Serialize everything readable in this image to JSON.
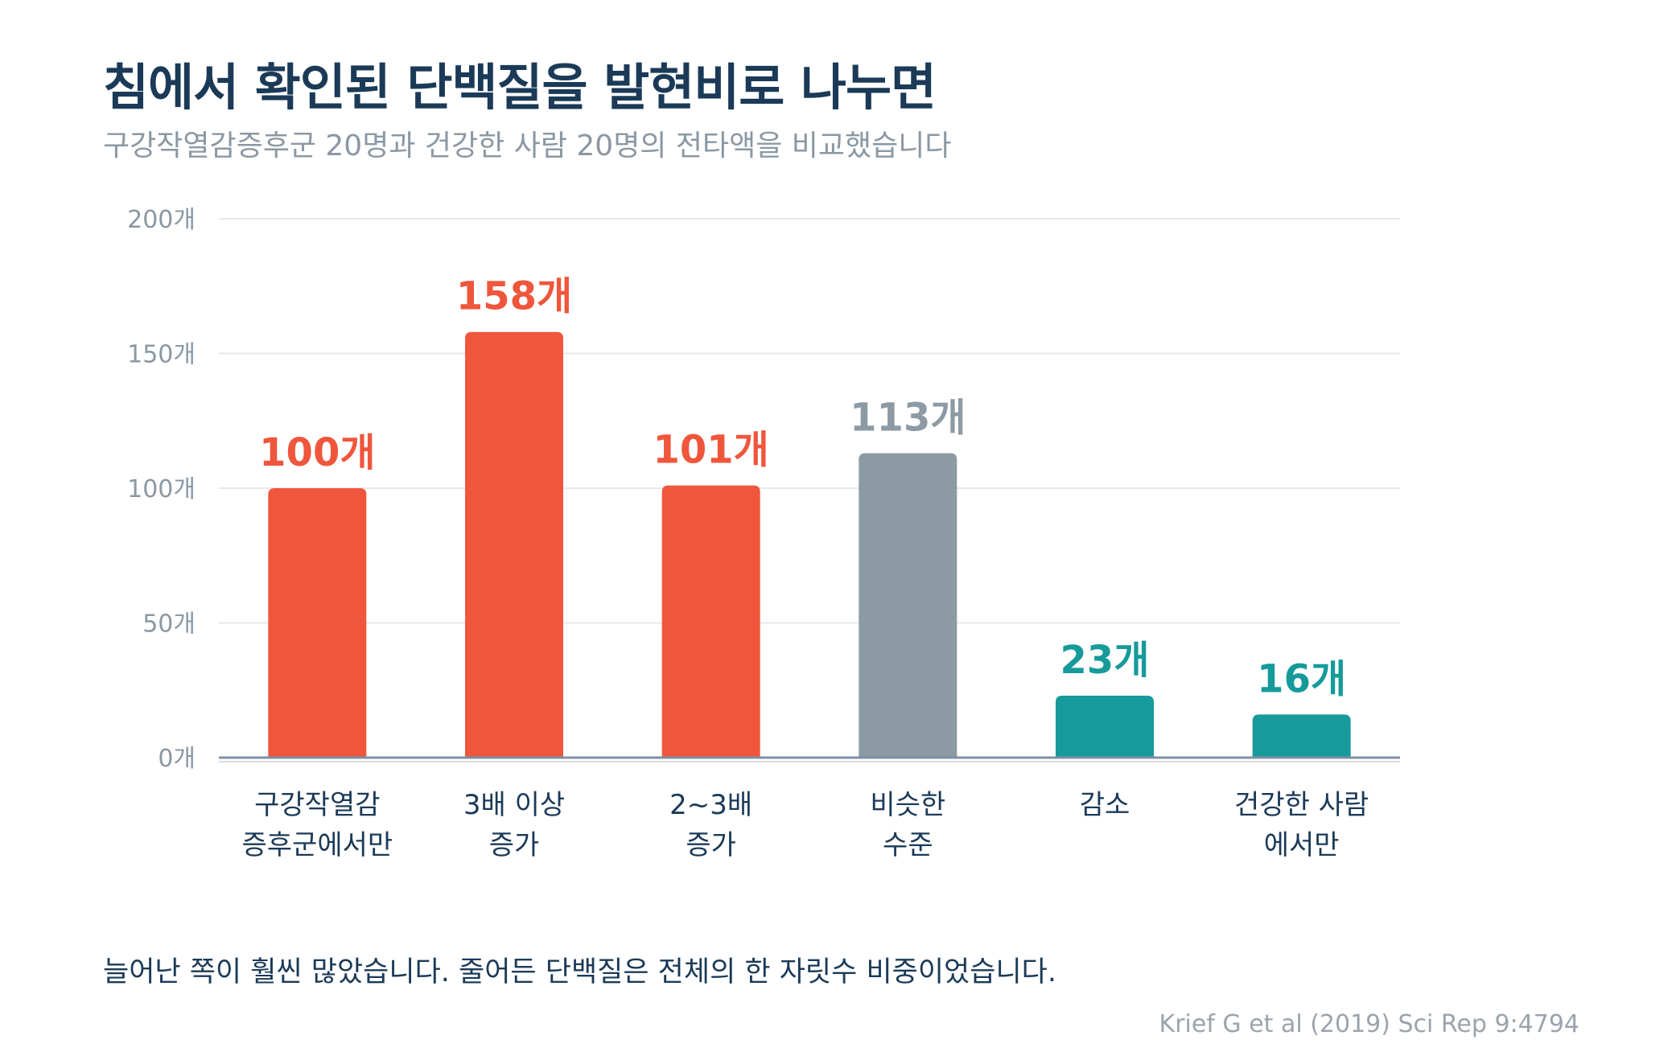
{
  "title": "침에서 확인된 단백질을 발현비로 나누면",
  "subtitle": "구강작열감증후군 20명과 건강한 사람 20명의 전타액을 비교했습니다",
  "footnote": "늘어난 쪽이 훨씬 많았습니다. 줄어든 단백질은 전체의 한 자릿수 비중이었습니다.",
  "source": "Krief G et al (2019) Sci Rep 9:4794",
  "colors": {
    "red": "#ef563c",
    "gray": "#8c9aa4",
    "teal": "#169a9a",
    "title": "#1b3a57",
    "grid": "#e6e9ec",
    "axis": "#7d8fa3"
  },
  "chart_data": {
    "type": "bar",
    "ylim": [
      0,
      200
    ],
    "yticks": [
      {
        "value": 0,
        "label": "0개"
      },
      {
        "value": 50,
        "label": "50개"
      },
      {
        "value": 100,
        "label": "100개"
      },
      {
        "value": 150,
        "label": "150개"
      },
      {
        "value": 200,
        "label": "200개"
      }
    ],
    "grid": true,
    "bars": [
      {
        "category": [
          "구강작열감",
          "증후군에서만"
        ],
        "value": 100,
        "label": "100개",
        "color": "red"
      },
      {
        "category": [
          "3배 이상",
          "증가"
        ],
        "value": 158,
        "label": "158개",
        "color": "red"
      },
      {
        "category": [
          "2~3배",
          "증가"
        ],
        "value": 101,
        "label": "101개",
        "color": "red"
      },
      {
        "category": [
          "비슷한",
          "수준"
        ],
        "value": 113,
        "label": "113개",
        "color": "gray"
      },
      {
        "category": [
          "감소"
        ],
        "value": 23,
        "label": "23개",
        "color": "teal"
      },
      {
        "category": [
          "건강한 사람",
          "에서만"
        ],
        "value": 16,
        "label": "16개",
        "color": "teal"
      }
    ]
  }
}
